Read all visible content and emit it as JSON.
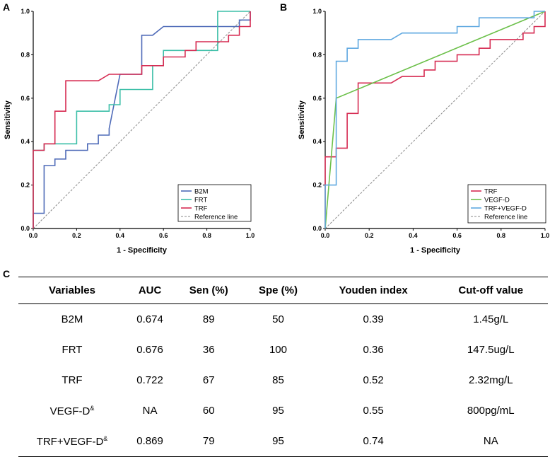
{
  "panels": {
    "a": "A",
    "b": "B",
    "c": "C"
  },
  "chart_data": [
    {
      "type": "line",
      "panel": "A",
      "xlabel": "1 - Specificity",
      "ylabel": "Sensitivity",
      "xlim": [
        0,
        1
      ],
      "ylim": [
        0,
        1
      ],
      "x_ticks": [
        "0.0",
        "0.2",
        "0.4",
        "0.6",
        "0.8",
        "1.0"
      ],
      "y_ticks": [
        "0.0",
        "0.2",
        "0.4",
        "0.6",
        "0.8",
        "1.0"
      ],
      "legend_position": "bottom-right",
      "series": [
        {
          "name": "B2M",
          "color": "#4f6bb8",
          "points": [
            [
              0,
              0
            ],
            [
              0,
              0.07
            ],
            [
              0.05,
              0.07
            ],
            [
              0.05,
              0.29
            ],
            [
              0.1,
              0.29
            ],
            [
              0.1,
              0.32
            ],
            [
              0.15,
              0.32
            ],
            [
              0.15,
              0.36
            ],
            [
              0.25,
              0.36
            ],
            [
              0.25,
              0.39
            ],
            [
              0.3,
              0.39
            ],
            [
              0.3,
              0.43
            ],
            [
              0.35,
              0.43
            ],
            [
              0.35,
              0.46
            ],
            [
              0.4,
              0.71
            ],
            [
              0.5,
              0.71
            ],
            [
              0.5,
              0.89
            ],
            [
              0.55,
              0.89
            ],
            [
              0.6,
              0.93
            ],
            [
              0.95,
              0.93
            ],
            [
              0.95,
              0.96
            ],
            [
              1,
              0.96
            ],
            [
              1,
              1
            ]
          ]
        },
        {
          "name": "FRT",
          "color": "#3dbfa8",
          "points": [
            [
              0,
              0
            ],
            [
              0,
              0.36
            ],
            [
              0.05,
              0.36
            ],
            [
              0.05,
              0.39
            ],
            [
              0.15,
              0.39
            ],
            [
              0.2,
              0.39
            ],
            [
              0.2,
              0.54
            ],
            [
              0.35,
              0.54
            ],
            [
              0.35,
              0.57
            ],
            [
              0.4,
              0.57
            ],
            [
              0.4,
              0.64
            ],
            [
              0.5,
              0.64
            ],
            [
              0.55,
              0.64
            ],
            [
              0.55,
              0.75
            ],
            [
              0.6,
              0.75
            ],
            [
              0.6,
              0.82
            ],
            [
              0.85,
              0.82
            ],
            [
              0.85,
              0.86
            ],
            [
              0.85,
              1
            ],
            [
              1,
              1
            ]
          ]
        },
        {
          "name": "TRF",
          "color": "#d62b52",
          "points": [
            [
              0,
              0
            ],
            [
              0,
              0.36
            ],
            [
              0.05,
              0.36
            ],
            [
              0.05,
              0.39
            ],
            [
              0.1,
              0.39
            ],
            [
              0.1,
              0.54
            ],
            [
              0.15,
              0.54
            ],
            [
              0.15,
              0.68
            ],
            [
              0.3,
              0.68
            ],
            [
              0.35,
              0.71
            ],
            [
              0.5,
              0.71
            ],
            [
              0.5,
              0.75
            ],
            [
              0.6,
              0.75
            ],
            [
              0.6,
              0.79
            ],
            [
              0.7,
              0.79
            ],
            [
              0.7,
              0.82
            ],
            [
              0.75,
              0.82
            ],
            [
              0.75,
              0.86
            ],
            [
              0.9,
              0.86
            ],
            [
              0.9,
              0.89
            ],
            [
              0.95,
              0.89
            ],
            [
              0.95,
              0.93
            ],
            [
              1,
              0.93
            ],
            [
              1,
              1
            ]
          ]
        },
        {
          "name": "Reference line",
          "color": "#888888",
          "dashed": true,
          "points": [
            [
              0,
              0
            ],
            [
              1,
              1
            ]
          ]
        }
      ]
    },
    {
      "type": "line",
      "panel": "B",
      "xlabel": "1 - Specificity",
      "ylabel": "Sensitivity",
      "xlim": [
        0,
        1
      ],
      "ylim": [
        0,
        1
      ],
      "x_ticks": [
        "0.0",
        "0.2",
        "0.4",
        "0.6",
        "0.8",
        "1.0"
      ],
      "y_ticks": [
        "0.0",
        "0.2",
        "0.4",
        "0.6",
        "0.8",
        "1.0"
      ],
      "legend_position": "bottom-right",
      "series": [
        {
          "name": "TRF",
          "color": "#d62b52",
          "points": [
            [
              0,
              0
            ],
            [
              0,
              0.33
            ],
            [
              0.05,
              0.33
            ],
            [
              0.05,
              0.37
            ],
            [
              0.1,
              0.37
            ],
            [
              0.1,
              0.53
            ],
            [
              0.15,
              0.53
            ],
            [
              0.15,
              0.67
            ],
            [
              0.3,
              0.67
            ],
            [
              0.35,
              0.7
            ],
            [
              0.45,
              0.7
            ],
            [
              0.45,
              0.73
            ],
            [
              0.5,
              0.73
            ],
            [
              0.5,
              0.77
            ],
            [
              0.6,
              0.77
            ],
            [
              0.6,
              0.8
            ],
            [
              0.7,
              0.8
            ],
            [
              0.7,
              0.83
            ],
            [
              0.75,
              0.83
            ],
            [
              0.75,
              0.87
            ],
            [
              0.9,
              0.87
            ],
            [
              0.9,
              0.9
            ],
            [
              0.95,
              0.9
            ],
            [
              0.95,
              0.93
            ],
            [
              1,
              0.93
            ],
            [
              1,
              1
            ]
          ]
        },
        {
          "name": "VEGF-D",
          "color": "#6cc04a",
          "points": [
            [
              0,
              0
            ],
            [
              0.05,
              0.6
            ],
            [
              1,
              1
            ]
          ]
        },
        {
          "name": "TRF+VEGF-D",
          "color": "#5fa8e0",
          "points": [
            [
              0,
              0
            ],
            [
              0,
              0.2
            ],
            [
              0.05,
              0.2
            ],
            [
              0.05,
              0.77
            ],
            [
              0.1,
              0.77
            ],
            [
              0.1,
              0.83
            ],
            [
              0.15,
              0.83
            ],
            [
              0.15,
              0.87
            ],
            [
              0.3,
              0.87
            ],
            [
              0.35,
              0.9
            ],
            [
              0.6,
              0.9
            ],
            [
              0.6,
              0.93
            ],
            [
              0.7,
              0.93
            ],
            [
              0.7,
              0.97
            ],
            [
              0.95,
              0.97
            ],
            [
              0.95,
              1
            ],
            [
              1,
              1
            ]
          ]
        },
        {
          "name": "Reference line",
          "color": "#888888",
          "dashed": true,
          "points": [
            [
              0,
              0
            ],
            [
              1,
              1
            ]
          ]
        }
      ]
    }
  ],
  "table": {
    "headers": [
      "Variables",
      "AUC",
      "Sen (%)",
      "Spe (%)",
      "Youden index",
      "Cut-off value"
    ],
    "rows": [
      {
        "variable": "B2M",
        "sup": "",
        "auc": "0.674",
        "sen": "89",
        "spe": "50",
        "youden": "0.39",
        "cutoff": "1.45g/L"
      },
      {
        "variable": "FRT",
        "sup": "",
        "auc": "0.676",
        "sen": "36",
        "spe": "100",
        "youden": "0.36",
        "cutoff": "147.5ug/L"
      },
      {
        "variable": "TRF",
        "sup": "",
        "auc": "0.722",
        "sen": "67",
        "spe": "85",
        "youden": "0.52",
        "cutoff": "2.32mg/L"
      },
      {
        "variable": "VEGF-D",
        "sup": "&",
        "auc": "NA",
        "sen": "60",
        "spe": "95",
        "youden": "0.55",
        "cutoff": "800pg/mL"
      },
      {
        "variable": "TRF+VEGF-D",
        "sup": "&",
        "auc": "0.869",
        "sen": "79",
        "spe": "95",
        "youden": "0.74",
        "cutoff": "NA"
      }
    ]
  }
}
